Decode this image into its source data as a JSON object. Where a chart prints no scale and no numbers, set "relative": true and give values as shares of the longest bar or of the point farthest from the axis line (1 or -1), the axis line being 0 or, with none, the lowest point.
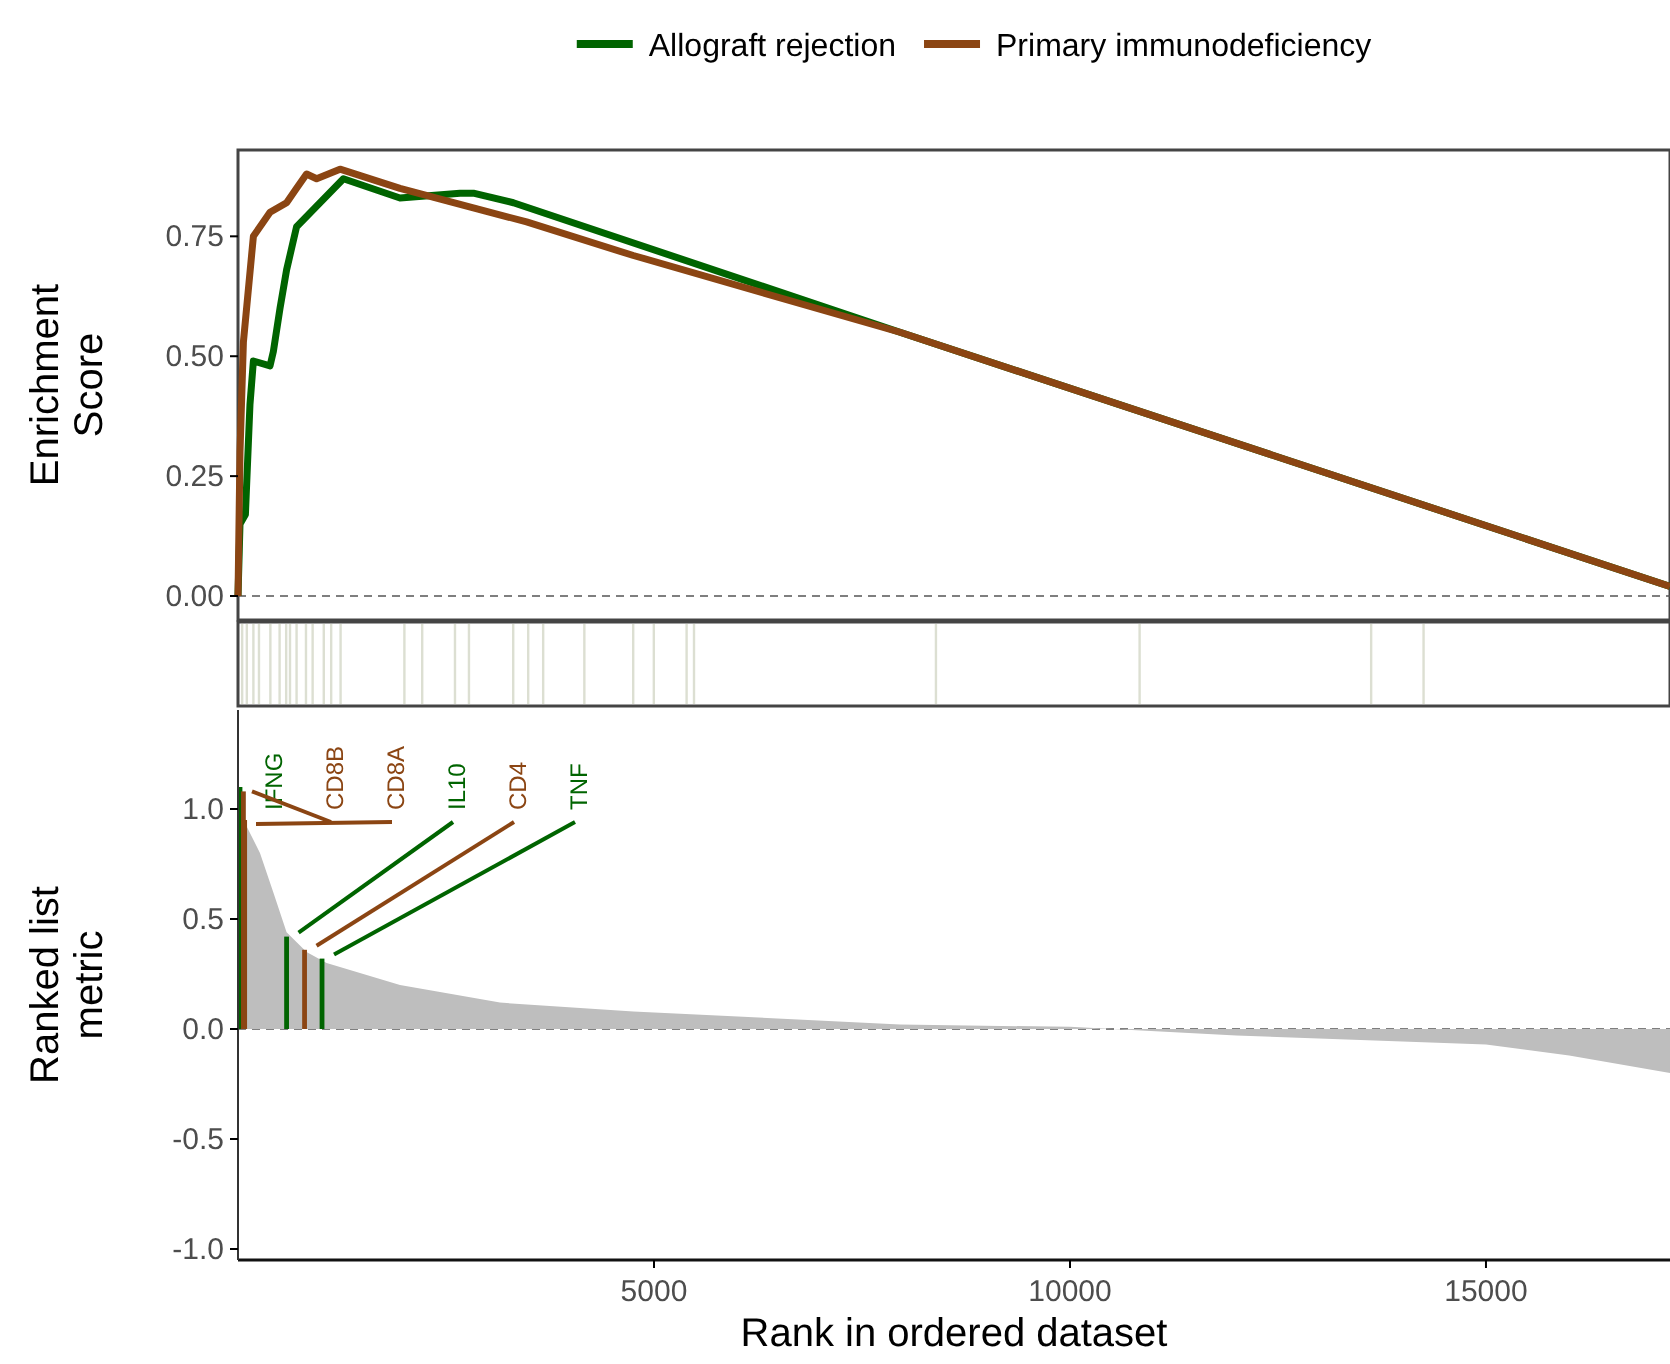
{
  "chart_data": [
    {
      "type": "line",
      "ylabel": "Enrichment\nScore",
      "xlim": [
        0,
        17212
      ],
      "ylim": [
        -0.05,
        0.93
      ],
      "yticks": [
        {
          "value": 0,
          "label": "0.00"
        },
        {
          "value": 0.25,
          "label": "0.25"
        },
        {
          "value": 0.5,
          "label": "0.50"
        },
        {
          "value": 0.75,
          "label": "0.75"
        }
      ],
      "tick_labels": "y",
      "legend": "top",
      "ref_lines": [
        {
          "axis": "y",
          "value": 0,
          "color": "#555555",
          "line_style": "dashed"
        }
      ],
      "series": [
        {
          "name": "Allograft rejection",
          "color": "#006400",
          "x": [
            0,
            24,
            89,
            144,
            185,
            385,
            425,
            505,
            584,
            704,
            1267,
            1947,
            2668,
            2829,
            3310,
            7957,
            17212
          ],
          "values": [
            0,
            0.15,
            0.17,
            0.4,
            0.49,
            0.48,
            0.51,
            0.6,
            0.68,
            0.77,
            0.87,
            0.83,
            0.84,
            0.84,
            0.82,
            0.55,
            0.02
          ]
        },
        {
          "name": "Primary immunodeficiency",
          "color": "#8b4513",
          "x": [
            0,
            24,
            65,
            185,
            385,
            584,
            704,
            824,
            945,
            1226,
            1947,
            3469,
            4752,
            7957,
            17212
          ],
          "values": [
            0,
            0.3,
            0.53,
            0.75,
            0.8,
            0.82,
            0.85,
            0.88,
            0.87,
            0.89,
            0.85,
            0.78,
            0.71,
            0.55,
            0.02
          ]
        }
      ]
    },
    {
      "type": "bar",
      "relative": true,
      "xlim": [
        0,
        17212
      ],
      "tick_labels": false,
      "color": "#dcdfd2",
      "x": [
        50,
        106,
        185,
        252,
        389,
        500,
        579,
        625,
        704,
        817,
        897,
        1031,
        1120,
        1233,
        2000,
        2214,
        2608,
        2776,
        3308,
        3488,
        3668,
        4163,
        4750,
        4998,
        5392,
        5481,
        8389,
        10837,
        13620,
        14250
      ],
      "values": [
        1,
        1,
        1,
        1,
        1,
        1,
        1,
        1,
        1,
        1,
        1,
        1,
        1,
        1,
        1,
        1,
        1,
        1,
        1,
        1,
        1,
        1,
        1,
        1,
        1,
        1,
        1,
        1,
        1,
        1
      ]
    },
    {
      "type": "area",
      "xlabel": "Rank in ordered dataset",
      "ylabel": "Ranked list\nmetric",
      "xlim": [
        0,
        17212
      ],
      "ylim": [
        -1.05,
        1.45
      ],
      "xticks": [
        5000,
        10000,
        15000
      ],
      "yticks": [
        {
          "value": -1,
          "label": "-1.0"
        },
        {
          "value": -0.5,
          "label": "-0.5"
        },
        {
          "value": 0,
          "label": "0.0"
        },
        {
          "value": 0.5,
          "label": "0.5"
        },
        {
          "value": 1,
          "label": "1.0"
        }
      ],
      "ref_lines": [
        {
          "axis": "y",
          "value": 0,
          "color": "#555555",
          "line_style": "dashed"
        }
      ],
      "series": [
        {
          "color": "#bebebe",
          "x": [
            0,
            24,
            65,
            264,
            425,
            584,
            824,
            1065,
            1947,
            3149,
            4752,
            7957,
            10000,
            12000,
            15000,
            16000,
            17212
          ],
          "values": [
            1.1,
            1.1,
            0.95,
            0.8,
            0.62,
            0.44,
            0.35,
            0.3,
            0.2,
            0.12,
            0.08,
            0.02,
            0.01,
            -0.03,
            -0.07,
            -0.12,
            -0.2
          ]
        },
        {
          "type": "bar",
          "x": [
            24,
            65,
            80,
            584,
            800,
            1010
          ],
          "values": [
            1.1,
            1.08,
            0.95,
            0.42,
            0.36,
            0.32
          ],
          "colors": [
            "#006400",
            "#8b4513",
            "#8b4513",
            "#006400",
            "#8b4513",
            "#006400"
          ]
        }
      ],
      "annotations": [
        {
          "text": "IFNG",
          "x": 24,
          "y": 1.1
        },
        {
          "text": "CD8B",
          "x": 65,
          "y": 1.08
        },
        {
          "text": "CD8A",
          "x": 80,
          "y": 0.95
        },
        {
          "text": "IL10",
          "x": 584,
          "y": 0.42
        },
        {
          "text": "CD4",
          "x": 800,
          "y": 0.36
        },
        {
          "text": "TNF",
          "x": 1010,
          "y": 0.32
        }
      ]
    }
  ]
}
